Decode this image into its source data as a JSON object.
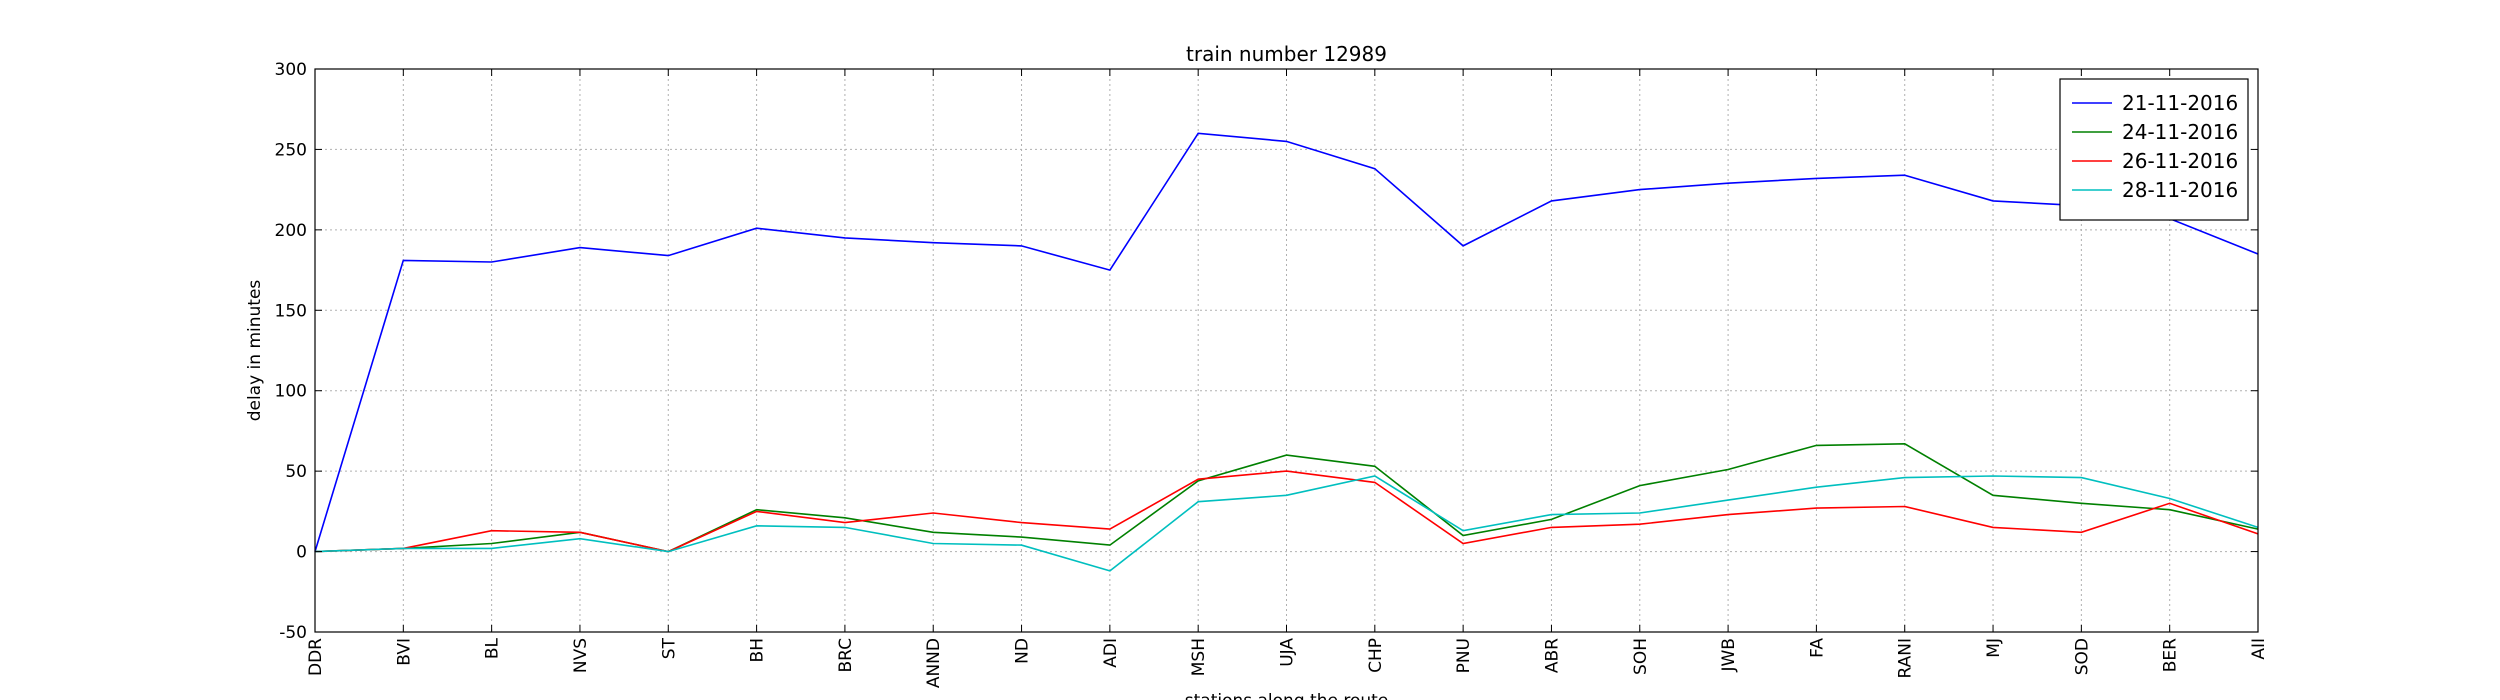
{
  "chart_data": {
    "type": "line",
    "title": "train number 12989",
    "xlabel": "stations along the route",
    "ylabel": "delay in minutes",
    "ylim": [
      -50,
      300
    ],
    "yticks": [
      -50,
      0,
      50,
      100,
      150,
      200,
      250,
      300
    ],
    "grid": true,
    "legend_position": "top-right",
    "categories": [
      "DDR",
      "BVI",
      "BL",
      "NVS",
      "ST",
      "BH",
      "BRC",
      "ANND",
      "ND",
      "ADI",
      "MSH",
      "UJA",
      "CHP",
      "PNU",
      "ABR",
      "SOH",
      "JWB",
      "FA",
      "RANI",
      "MJ",
      "SOD",
      "BER",
      "AII"
    ],
    "series": [
      {
        "name": "21-11-2016",
        "color": "#0000ff",
        "values": [
          0,
          181,
          180,
          189,
          184,
          201,
          195,
          192,
          190,
          175,
          260,
          255,
          238,
          190,
          218,
          225,
          229,
          232,
          234,
          218,
          215,
          207,
          185
        ]
      },
      {
        "name": "24-11-2016",
        "color": "#008000",
        "values": [
          0,
          2,
          5,
          12,
          0,
          26,
          21,
          12,
          9,
          4,
          44,
          60,
          53,
          10,
          20,
          41,
          51,
          66,
          67,
          35,
          30,
          26,
          14
        ]
      },
      {
        "name": "26-11-2016",
        "color": "#ff0000",
        "values": [
          0,
          2,
          13,
          12,
          0,
          25,
          18,
          24,
          18,
          14,
          45,
          50,
          43,
          5,
          15,
          17,
          23,
          27,
          28,
          15,
          12,
          30,
          11
        ]
      },
      {
        "name": "28-11-2016",
        "color": "#00bfbf",
        "values": [
          0,
          2,
          2,
          8,
          0,
          16,
          15,
          5,
          4,
          -12,
          31,
          35,
          47,
          13,
          23,
          24,
          32,
          40,
          46,
          47,
          46,
          33,
          15
        ]
      }
    ]
  }
}
